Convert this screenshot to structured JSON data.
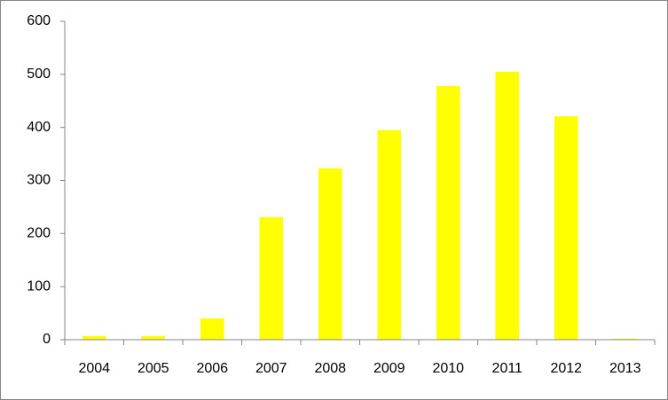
{
  "chart_data": {
    "type": "bar",
    "categories": [
      "2004",
      "2005",
      "2006",
      "2007",
      "2008",
      "2009",
      "2010",
      "2011",
      "2012",
      "2013"
    ],
    "values": [
      7,
      7,
      40,
      231,
      323,
      395,
      478,
      505,
      421,
      2
    ],
    "color": "#ffff00",
    "ylim": [
      0,
      600
    ],
    "yticks": [
      0,
      100,
      200,
      300,
      400,
      500,
      600
    ],
    "grid": false
  }
}
